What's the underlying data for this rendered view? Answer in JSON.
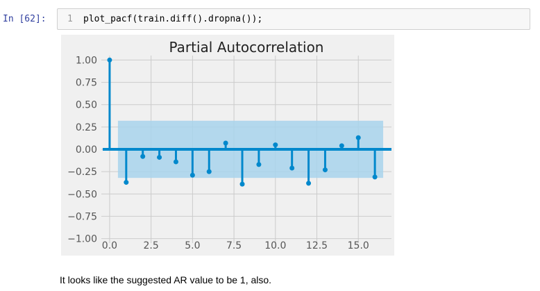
{
  "cell": {
    "prompt": "In [62]:",
    "line_number": "1",
    "code": "plot_pacf(train.diff().dropna());"
  },
  "output": {
    "text": "It looks like the suggested AR value to be 1, also."
  },
  "colors": {
    "stem": "#0088cc",
    "confidence_band": "#a8d3ec",
    "plot_background": "#f0f0f0",
    "grid": "#cbcbcb",
    "prompt": "#303f9f"
  },
  "chart_data": {
    "type": "scatter",
    "style": "stem",
    "title": "Partial Autocorrelation",
    "xlabel": "",
    "ylabel": "",
    "x_ticks": [
      "0.0",
      "2.5",
      "5.0",
      "7.5",
      "10.0",
      "12.5",
      "15.0"
    ],
    "y_ticks": [
      "1.00",
      "0.75",
      "0.50",
      "0.25",
      "0.00",
      "−0.25",
      "−0.50",
      "−0.75",
      "−1.00"
    ],
    "xlim": [
      -0.5,
      17
    ],
    "ylim": [
      -1.05,
      1.05
    ],
    "grid": true,
    "lags": [
      0,
      1,
      2,
      3,
      4,
      5,
      6,
      7,
      8,
      9,
      10,
      11,
      12,
      13,
      14,
      15,
      16
    ],
    "values": [
      1.0,
      -0.37,
      -0.08,
      -0.09,
      -0.14,
      -0.29,
      -0.25,
      0.07,
      -0.39,
      -0.17,
      0.05,
      -0.21,
      -0.38,
      -0.23,
      0.04,
      0.13,
      -0.31
    ],
    "confidence_interval": [
      -0.32,
      0.32
    ]
  }
}
